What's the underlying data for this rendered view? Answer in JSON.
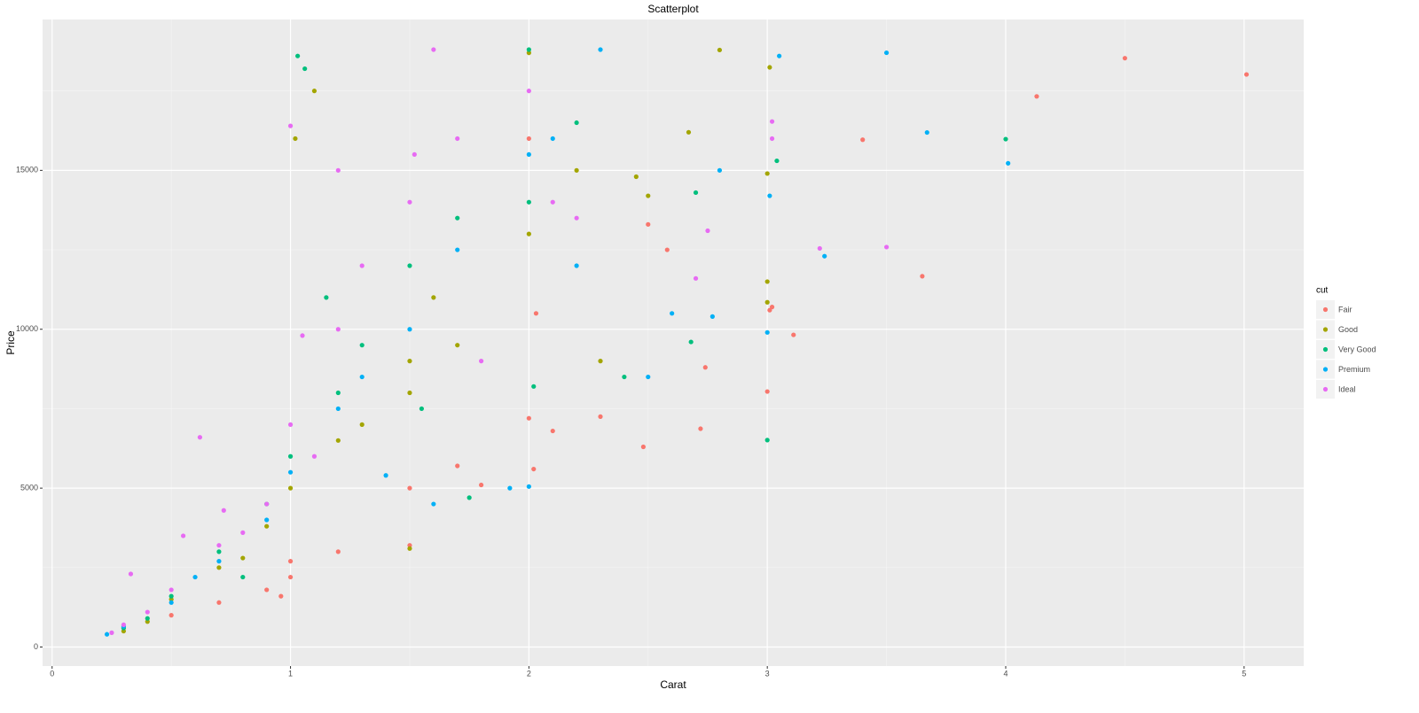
{
  "chart_data": {
    "type": "scatter",
    "title": "Scatterplot",
    "x_label": "Carat",
    "y_label": "Price",
    "legend_title": "cut",
    "legend_position": "right",
    "grid": true,
    "xlim": [
      -0.04,
      5.25
    ],
    "xticks": [
      0,
      1,
      2,
      3,
      4,
      5
    ],
    "x_minor_ticks": [
      0.5,
      1.5,
      2.5,
      3.5,
      4.5
    ],
    "ylim": [
      -599,
      19748
    ],
    "yticks": [
      0,
      5000,
      10000,
      15000
    ],
    "y_minor_ticks": [
      2500,
      7500,
      12500,
      17500
    ],
    "series": [
      {
        "name": "Fair",
        "color": "#F8766D",
        "x": [
          5.01,
          4.5,
          4.13,
          3.4,
          3.65,
          3.01,
          3.11,
          3.0,
          2.72,
          2.48,
          2.02,
          1.8,
          1.5,
          1.0,
          0.9,
          0.7,
          0.5,
          0.3,
          1.2,
          2.0,
          2.3,
          1.5,
          1.0,
          0.96,
          1.7,
          2.1,
          2.5,
          2.58,
          3.02,
          2.03,
          2.0,
          2.74
        ],
        "values": [
          18018,
          18531,
          17329,
          15964,
          11668,
          10600,
          9823,
          8040,
          6870,
          6300,
          5600,
          5100,
          3200,
          2700,
          1800,
          1400,
          1000,
          600,
          3000,
          7200,
          7250,
          5000,
          2200,
          1600,
          5700,
          6800,
          13300,
          12500,
          10700,
          10500,
          16000,
          8800
        ]
      },
      {
        "name": "Good",
        "color": "#A3A500",
        "x": [
          2.8,
          3.01,
          3.0,
          3.0,
          3.0,
          2.67,
          2.5,
          1.02,
          1.1,
          1.5,
          1.5,
          2.0,
          0.3,
          0.5,
          0.7,
          0.9,
          1.0,
          1.2,
          1.5,
          1.7,
          2.0,
          2.2,
          1.3,
          0.4,
          2.3,
          0.8,
          1.6,
          2.45
        ],
        "values": [
          18788,
          18242,
          14900,
          11500,
          10850,
          16200,
          14200,
          16000,
          17500,
          3100,
          9000,
          18700,
          500,
          1500,
          2500,
          3800,
          5000,
          6500,
          8000,
          9500,
          13000,
          15000,
          7000,
          800,
          9000,
          2800,
          11000,
          14800
        ]
      },
      {
        "name": "Very Good",
        "color": "#00BF7D",
        "x": [
          4.0,
          3.04,
          3.0,
          2.68,
          2.7,
          1.03,
          1.06,
          2.0,
          0.3,
          0.5,
          0.7,
          0.9,
          1.0,
          1.2,
          1.5,
          1.7,
          2.0,
          2.2,
          1.75,
          0.4,
          1.3,
          2.02,
          2.4,
          0.8,
          1.15,
          1.55
        ],
        "values": [
          15984,
          15300,
          6512,
          9600,
          14300,
          18600,
          18200,
          18800,
          600,
          1600,
          3000,
          4500,
          6000,
          8000,
          12000,
          13500,
          14000,
          16500,
          4700,
          900,
          9500,
          8200,
          8500,
          2200,
          11000,
          7500
        ]
      },
      {
        "name": "Premium",
        "color": "#00B0F6",
        "x": [
          4.01,
          3.5,
          3.67,
          3.24,
          3.05,
          3.01,
          3.0,
          2.8,
          2.77,
          2.3,
          1.92,
          2.0,
          1.6,
          0.3,
          0.23,
          0.5,
          0.7,
          0.9,
          1.0,
          1.2,
          1.5,
          1.7,
          2.0,
          2.2,
          1.3,
          2.5,
          2.1,
          0.6,
          1.4,
          2.6
        ],
        "values": [
          15223,
          18701,
          16193,
          12300,
          18600,
          14200,
          9900,
          15000,
          10400,
          18800,
          5000,
          5050,
          4500,
          650,
          400,
          1400,
          2700,
          4000,
          5500,
          7500,
          10000,
          12500,
          15500,
          12000,
          8500,
          8500,
          16000,
          2200,
          5400,
          10500
        ]
      },
      {
        "name": "Ideal",
        "color": "#E76BF3",
        "x": [
          3.5,
          3.22,
          3.02,
          3.02,
          2.75,
          2.7,
          1.6,
          1.0,
          1.2,
          0.62,
          0.3,
          0.33,
          0.4,
          0.5,
          0.55,
          0.7,
          0.72,
          0.9,
          1.0,
          1.05,
          1.2,
          1.3,
          1.5,
          1.52,
          1.7,
          2.0,
          2.1,
          1.1,
          0.8,
          1.8,
          2.2,
          0.25
        ],
        "values": [
          12587,
          12545,
          16538,
          16000,
          13100,
          11600,
          18800,
          16400,
          15000,
          6600,
          700,
          2300,
          1100,
          1800,
          3500,
          3200,
          4300,
          4500,
          7000,
          9800,
          10000,
          12000,
          14000,
          15500,
          16000,
          17500,
          14000,
          6000,
          3600,
          9000,
          13500,
          450
        ]
      }
    ]
  }
}
